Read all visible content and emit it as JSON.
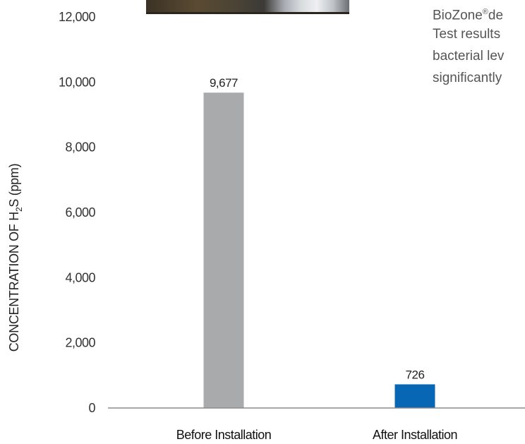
{
  "side_text": {
    "lines": [
      {
        "text": "BioZone",
        "sup": "®",
        "after": "de"
      },
      {
        "text": "Test results"
      },
      {
        "text": "bacterial lev"
      },
      {
        "text": "significantly"
      }
    ]
  },
  "chart_data": {
    "type": "bar",
    "categories": [
      "Before Installation",
      "After Installation"
    ],
    "values": [
      9677,
      726
    ],
    "value_labels": [
      "9,677",
      "726"
    ],
    "bar_colors": [
      "#a9aaac",
      "#0867b4"
    ],
    "ylabel": {
      "pre": "CONCENTRATION OF H",
      "sub": "2",
      "post": "S (ppm)"
    },
    "yticks": [
      0,
      2000,
      4000,
      6000,
      8000,
      10000,
      12000
    ],
    "ytick_labels": [
      "0",
      "2,000",
      "4,000",
      "6,000",
      "8,000",
      "10,000",
      "12,000"
    ],
    "ylim": [
      0,
      12000
    ],
    "grid": false,
    "axis_color": "#8c8c8c"
  }
}
